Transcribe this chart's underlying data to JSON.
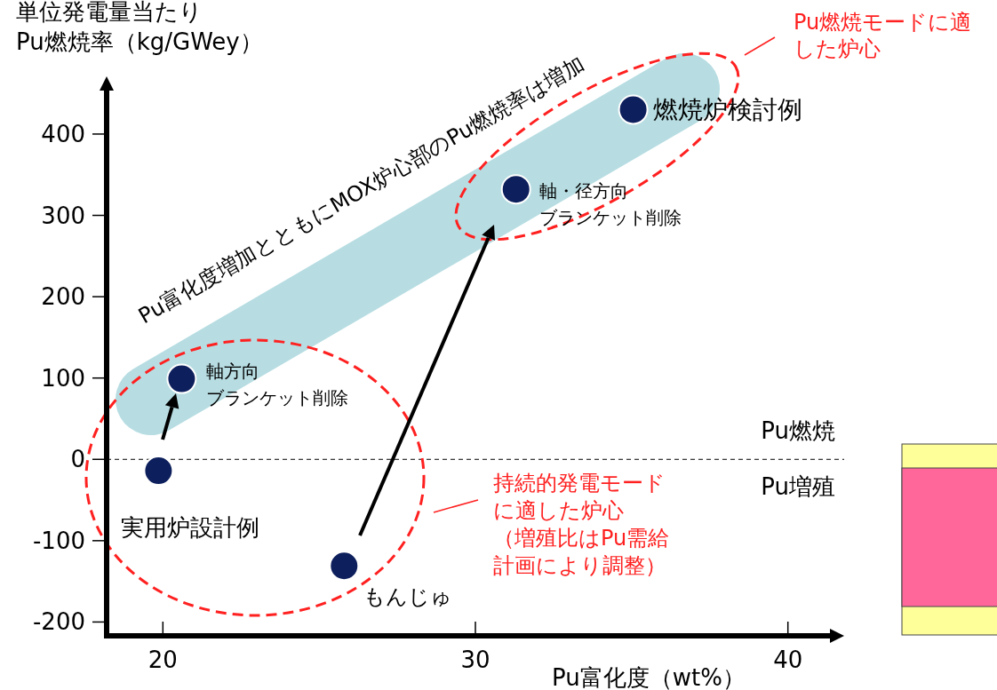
{
  "chart_data": {
    "type": "scatter",
    "xlabel": "Pu富化度（wt%）",
    "ylabel": "単位発電量当たりPu燃焼率（kg/GWey）",
    "x": [
      19.86,
      20.6,
      25.8,
      31.3,
      35.05
    ],
    "series": [
      {
        "color": "#0d1f5c",
        "values": [
          -14,
          99,
          -131,
          332,
          430
        ]
      }
    ],
    "marker": "circle",
    "grid": false,
    "xlim": [
      18.2,
      41.8
    ],
    "ylim": [
      -217,
      460
    ],
    "xticks": [
      20,
      30,
      40
    ],
    "yticks": [
      -200,
      -100,
      0,
      100,
      200,
      300,
      400
    ],
    "ref_lines": [
      {
        "axis": "y",
        "value": 0,
        "line_style": "dashed",
        "color": "#000000"
      }
    ],
    "annotations": [
      {
        "text": "燃焼炉検討例",
        "x": 35.05,
        "y": 430
      },
      {
        "text": "軸・径方向ブランケット削除",
        "x": 31.3,
        "y": 332
      },
      {
        "text": "軸方向ブランケット削除",
        "x": 20.6,
        "y": 99
      },
      {
        "text": "実用炉設計例",
        "x": 19.86,
        "y": -14
      },
      {
        "text": "もんじゅ",
        "x": 25.8,
        "y": -131
      },
      "Pu富化度増加とともにMOX炉心部のPu燃焼率は増加",
      "Pu燃焼モードに適した炉心",
      "持続的発電モードに適した炉心（増殖比はPu需給計画により調整）",
      "Pu燃焼",
      "Pu増殖"
    ]
  }
}
